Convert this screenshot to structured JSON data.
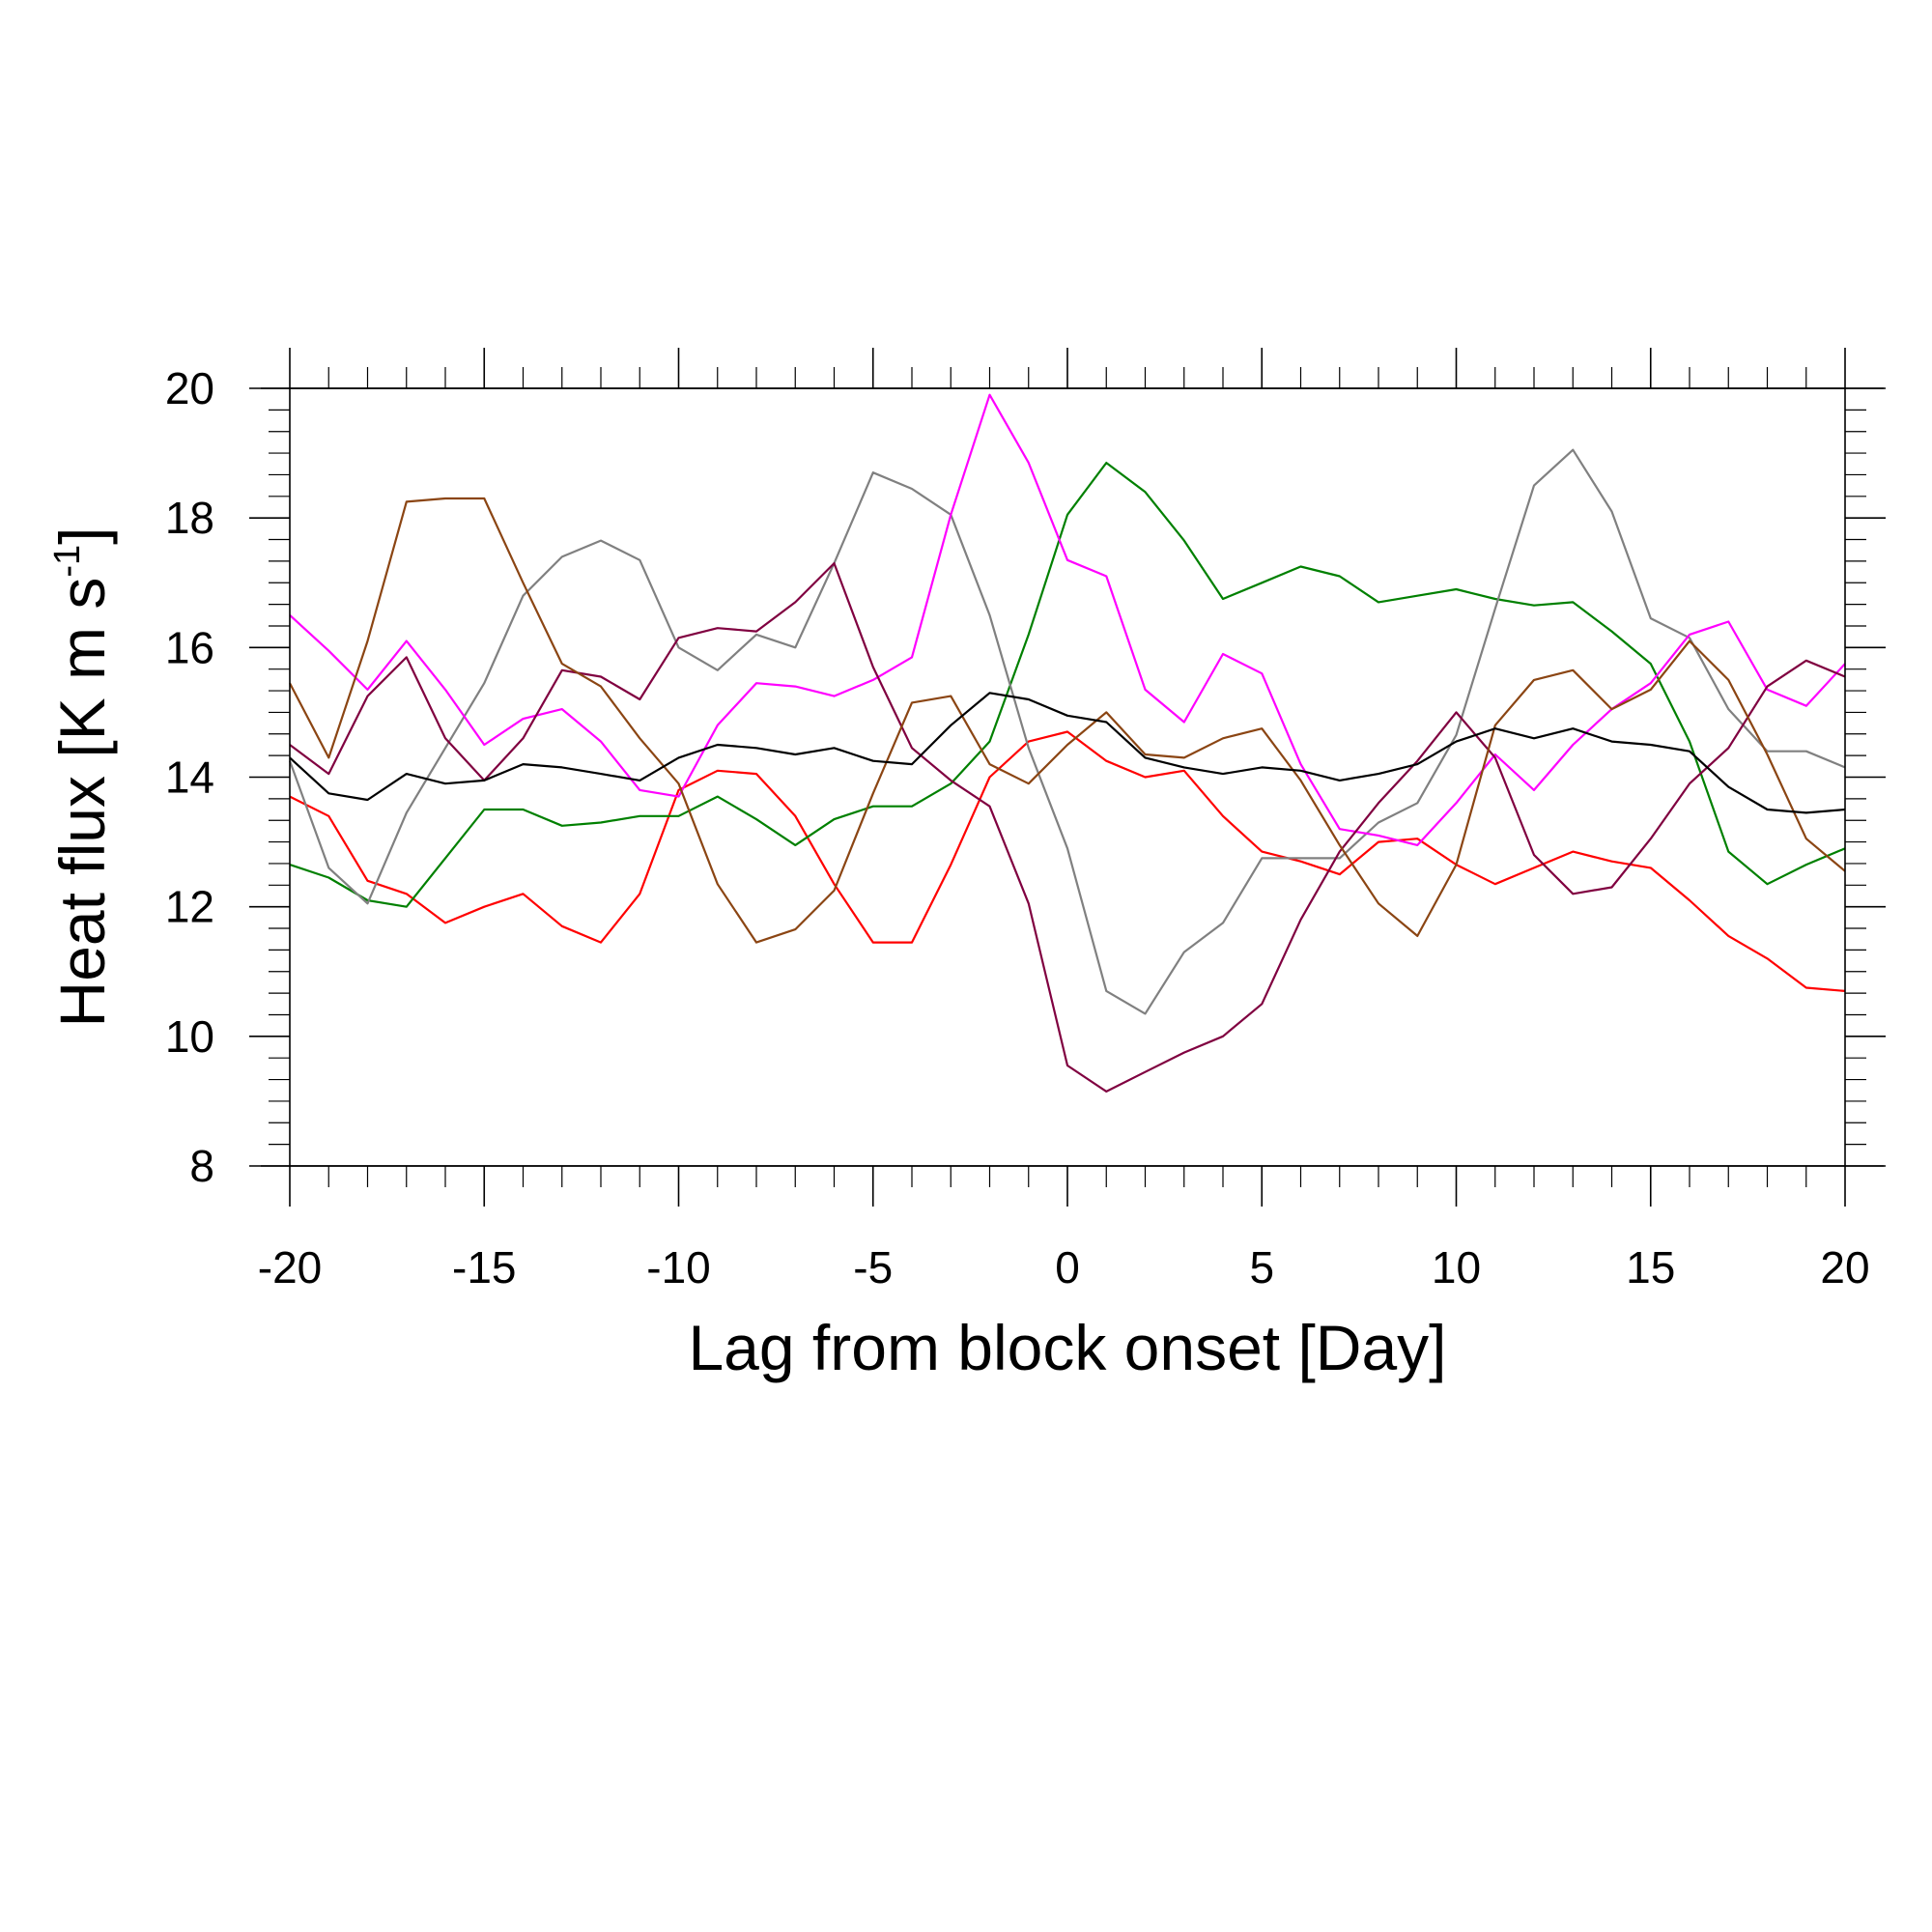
{
  "chart_data": {
    "type": "line",
    "xlabel": "Lag from block onset [Day]",
    "ylabel": {
      "main": "Heat flux [K m s",
      "sup": "-1",
      "tail": "]"
    },
    "xlim": [
      -20,
      20
    ],
    "ylim": [
      8,
      20
    ],
    "xticks": [
      -20,
      -15,
      -10,
      -5,
      0,
      5,
      10,
      15,
      20
    ],
    "yticks": [
      8,
      10,
      12,
      14,
      16,
      18,
      20
    ],
    "grid": false,
    "legend": "none",
    "x": [
      -20,
      -19,
      -18,
      -17,
      -16,
      -15,
      -14,
      -13,
      -12,
      -11,
      -10,
      -9,
      -8,
      -7,
      -6,
      -5,
      -4,
      -3,
      -2,
      -1,
      0,
      1,
      2,
      3,
      4,
      5,
      6,
      7,
      8,
      9,
      10,
      11,
      12,
      13,
      14,
      15,
      16,
      17,
      18,
      19,
      20
    ],
    "series": [
      {
        "color": "#ff0000",
        "values": [
          13.7,
          13.4,
          12.4,
          12.2,
          11.75,
          12.0,
          12.2,
          11.7,
          11.45,
          12.2,
          13.8,
          14.1,
          14.05,
          13.4,
          12.35,
          11.45,
          11.45,
          12.65,
          14.0,
          14.55,
          14.7,
          14.25,
          14.0,
          14.1,
          13.4,
          12.85,
          12.7,
          12.5,
          13.0,
          13.05,
          12.65,
          12.35,
          12.6,
          12.85,
          12.7,
          12.6,
          12.1,
          11.55,
          11.2,
          10.75,
          10.7
        ]
      },
      {
        "color": "#008000",
        "values": [
          12.65,
          12.45,
          12.1,
          12.0,
          12.75,
          13.5,
          13.5,
          13.25,
          13.3,
          13.4,
          13.4,
          13.7,
          13.35,
          12.95,
          13.35,
          13.55,
          13.55,
          13.9,
          14.55,
          16.2,
          18.05,
          18.85,
          18.4,
          17.65,
          16.75,
          17.0,
          17.25,
          17.1,
          16.7,
          16.8,
          16.9,
          16.75,
          16.65,
          16.7,
          16.25,
          15.75,
          14.55,
          12.85,
          12.35,
          12.65,
          12.9
        ]
      },
      {
        "color": "#808080",
        "values": [
          14.25,
          12.6,
          12.05,
          13.45,
          14.45,
          15.45,
          16.8,
          17.4,
          17.65,
          17.35,
          16.0,
          15.65,
          16.2,
          16.0,
          17.3,
          18.7,
          18.45,
          18.05,
          16.5,
          14.45,
          12.9,
          10.7,
          10.35,
          11.3,
          11.75,
          12.75,
          12.75,
          12.75,
          13.3,
          13.6,
          14.65,
          16.6,
          18.5,
          19.05,
          18.1,
          16.45,
          16.15,
          15.05,
          14.4,
          14.4,
          14.15
        ]
      },
      {
        "color": "#ff00ff",
        "values": [
          16.5,
          15.95,
          15.35,
          16.1,
          15.35,
          14.5,
          14.9,
          15.05,
          14.55,
          13.8,
          13.7,
          14.8,
          15.45,
          15.4,
          15.25,
          15.5,
          15.85,
          18.05,
          19.9,
          18.85,
          17.35,
          17.1,
          15.35,
          14.85,
          15.9,
          15.6,
          14.2,
          13.2,
          13.1,
          12.95,
          13.6,
          14.35,
          13.8,
          14.5,
          15.05,
          15.45,
          16.2,
          16.4,
          15.35,
          15.1,
          15.75
        ]
      },
      {
        "color": "#800040",
        "values": [
          14.5,
          14.05,
          15.25,
          15.85,
          14.6,
          13.95,
          14.6,
          15.65,
          15.55,
          15.2,
          16.15,
          16.3,
          16.25,
          16.7,
          17.3,
          15.7,
          14.45,
          13.95,
          13.55,
          12.05,
          9.55,
          9.15,
          9.45,
          9.75,
          10.0,
          10.5,
          11.8,
          12.85,
          13.6,
          14.25,
          15.0,
          14.3,
          12.8,
          12.2,
          12.3,
          13.05,
          13.9,
          14.45,
          15.4,
          15.8,
          15.55
        ]
      },
      {
        "color": "#8b4513",
        "values": [
          15.45,
          14.3,
          16.1,
          18.25,
          18.3,
          18.3,
          17.0,
          15.75,
          15.4,
          14.6,
          13.9,
          12.35,
          11.45,
          11.65,
          12.25,
          13.75,
          15.15,
          15.25,
          14.2,
          13.9,
          14.5,
          15.0,
          14.35,
          14.3,
          14.6,
          14.75,
          13.95,
          12.95,
          12.05,
          11.55,
          12.65,
          14.8,
          15.5,
          15.65,
          15.05,
          15.35,
          16.1,
          15.5,
          14.35,
          13.05,
          12.55
        ]
      },
      {
        "color": "#000000",
        "values": [
          14.3,
          13.75,
          13.65,
          14.05,
          13.9,
          13.95,
          14.2,
          14.15,
          14.05,
          13.95,
          14.3,
          14.5,
          14.45,
          14.35,
          14.45,
          14.25,
          14.2,
          14.8,
          15.3,
          15.2,
          14.95,
          14.85,
          14.3,
          14.15,
          14.05,
          14.15,
          14.1,
          13.95,
          14.05,
          14.2,
          14.55,
          14.75,
          14.6,
          14.75,
          14.55,
          14.5,
          14.4,
          13.85,
          13.5,
          13.45,
          13.5
        ]
      }
    ]
  }
}
